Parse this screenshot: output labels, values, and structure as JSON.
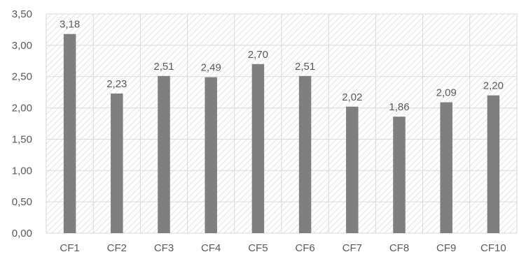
{
  "chart_data": {
    "type": "bar",
    "title": "",
    "xlabel": "",
    "ylabel": "",
    "categories": [
      "CF1",
      "CF2",
      "CF3",
      "CF4",
      "CF5",
      "CF6",
      "CF7",
      "CF8",
      "CF9",
      "CF10"
    ],
    "values": [
      3.18,
      2.23,
      2.51,
      2.49,
      2.7,
      2.51,
      2.02,
      1.86,
      2.09,
      2.2
    ],
    "value_labels": [
      "3,18",
      "2,23",
      "2,51",
      "2,49",
      "2,70",
      "2,51",
      "2,02",
      "1,86",
      "2,09",
      "2,20"
    ],
    "ylim": [
      0,
      3.5
    ],
    "y_ticks": [
      0,
      0.5,
      1.0,
      1.5,
      2.0,
      2.5,
      3.0,
      3.5
    ],
    "y_tick_labels": [
      "0,00",
      "0,50",
      "1,00",
      "1,50",
      "2,00",
      "2,50",
      "3,00",
      "3,50"
    ],
    "grid": true,
    "legend": "none",
    "colors": {
      "bar": "#7f7f7f",
      "gridline": "#d9d9d9",
      "hatch": "#e3e3e3",
      "text": "#595959"
    }
  }
}
